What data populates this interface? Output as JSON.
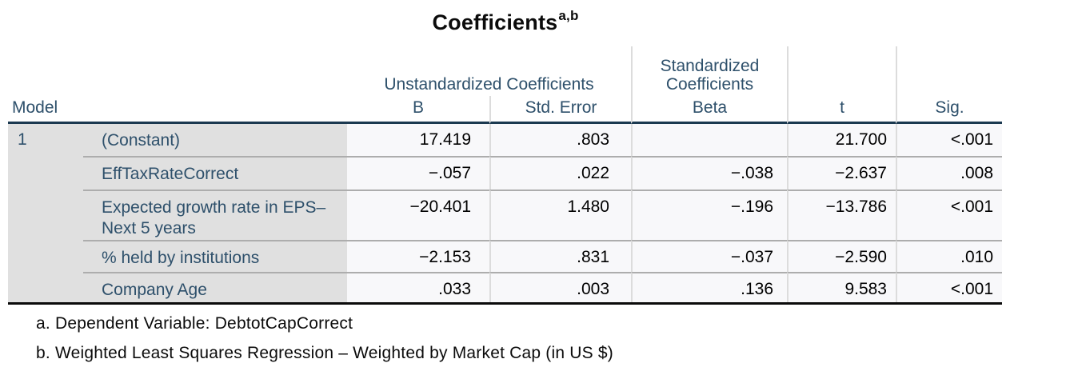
{
  "chart_data": {
    "type": "table",
    "title": "Coefficients",
    "title_superscript": "a,b",
    "header": {
      "model": "Model",
      "group_unstandardized": "Unstandardized Coefficients",
      "group_standardized": "Standardized Coefficients",
      "b": "B",
      "std_error": "Std. Error",
      "beta": "Beta",
      "t": "t",
      "sig": "Sig."
    },
    "model_number": "1",
    "rows": [
      {
        "label": "(Constant)",
        "b": "17.419",
        "std_error": ".803",
        "beta": "",
        "t": "21.700",
        "sig": "<.001"
      },
      {
        "label": "EffTaxRateCorrect",
        "b": "−.057",
        "std_error": ".022",
        "beta": "−.038",
        "t": "−2.637",
        "sig": ".008"
      },
      {
        "label": "Expected growth rate in EPS– Next 5 years",
        "b": "−20.401",
        "std_error": "1.480",
        "beta": "−.196",
        "t": "−13.786",
        "sig": "<.001"
      },
      {
        "label": "% held by institutions",
        "b": "−2.153",
        "std_error": ".831",
        "beta": "−.037",
        "t": "−2.590",
        "sig": ".010"
      },
      {
        "label": "Company Age",
        "b": ".033",
        "std_error": ".003",
        "beta": ".136",
        "t": "9.583",
        "sig": "<.001"
      }
    ],
    "footnotes": [
      "a. Dependent Variable: DebtotCapCorrect",
      "b. Weighted Least Squares Regression – Weighted by Market Cap (in US $)"
    ],
    "layout": {
      "legend_position": "none",
      "grid": "table-rules"
    },
    "colors": {
      "header_text": "#2e506b",
      "row_label_text": "#2e506b",
      "value_text": "#000000",
      "label_column_bg": "#e0e0e0",
      "value_cell_bg": "#f8f8fa",
      "header_rule": "#1b3950",
      "bottom_rule": "#0a0a0a",
      "row_divider": "#adadad",
      "column_divider": "#dcdcdc"
    }
  }
}
